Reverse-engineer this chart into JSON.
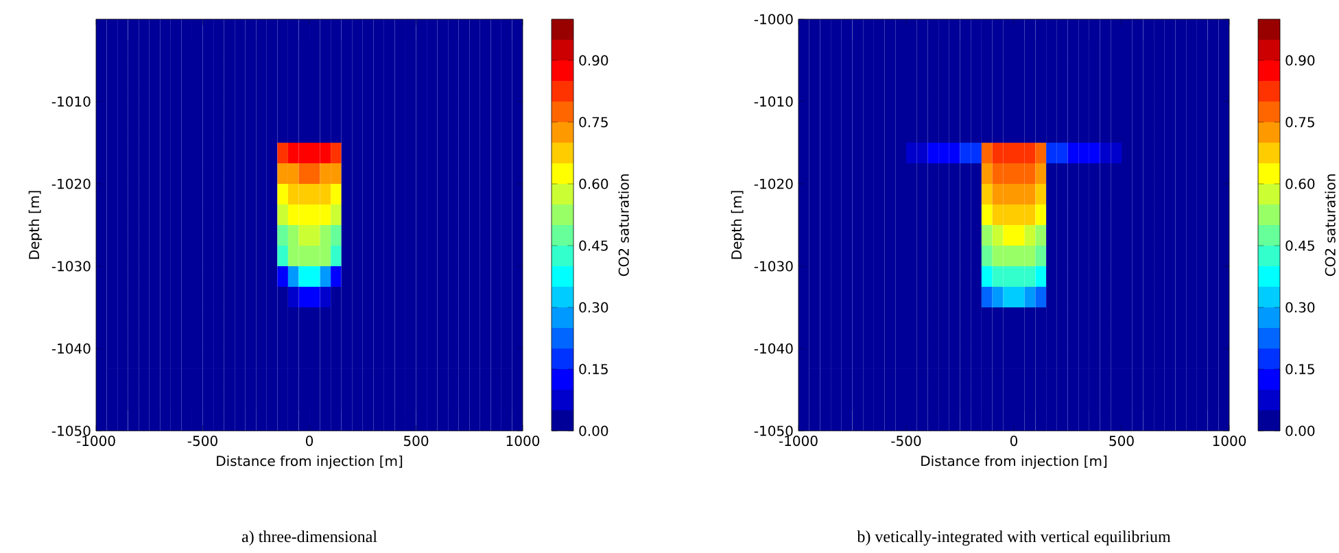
{
  "chart_data": [
    {
      "type": "heatmap",
      "xlabel": "Distance from injection [m]",
      "ylabel": "Depth [m]",
      "clabel": "CO2 saturation",
      "annotations": [
        "a) three-dimensional"
      ],
      "xlim": [
        -1000,
        1000
      ],
      "ylim": [
        -1050,
        -1000
      ],
      "xticks": [
        -1000,
        -500,
        0,
        500,
        1000
      ],
      "yticks": [
        -1050,
        -1040,
        -1030,
        -1020,
        -1010
      ],
      "clim": [
        0,
        1
      ],
      "cticks": [
        {
          "value": 0,
          "label": "0.00"
        },
        {
          "value": 0.15,
          "label": "0.15"
        },
        {
          "value": 0.3,
          "label": "0.30"
        },
        {
          "value": 0.45,
          "label": "0.45"
        },
        {
          "value": 0.6,
          "label": "0.60"
        },
        {
          "value": 0.75,
          "label": "0.75"
        },
        {
          "value": 0.9,
          "label": "0.90"
        }
      ],
      "x": [
        -975,
        -925,
        -875,
        -825,
        -775,
        -725,
        -675,
        -625,
        -575,
        -525,
        -475,
        -425,
        -375,
        -325,
        -275,
        -225,
        -175,
        -125,
        -75,
        -25,
        25,
        75,
        125,
        175,
        225,
        275,
        325,
        375,
        425,
        475,
        525,
        575,
        625,
        675,
        725,
        775,
        825,
        875,
        925,
        975
      ],
      "y": [
        -1001.25,
        -1003.75,
        -1006.25,
        -1008.75,
        -1011.25,
        -1013.75,
        -1016.25,
        -1018.75,
        -1021.25,
        -1023.75,
        -1026.25,
        -1028.75,
        -1031.25,
        -1033.75,
        -1036.25,
        -1038.75,
        -1041.25,
        -1043.75,
        -1046.25,
        -1048.75
      ],
      "cells": [
        [
          0,
          0,
          0,
          0,
          0,
          0,
          0,
          0,
          0,
          0,
          0,
          0,
          0,
          0,
          0,
          0,
          0,
          0,
          0,
          0,
          0,
          0,
          0,
          0,
          0,
          0,
          0,
          0,
          0,
          0,
          0,
          0,
          0,
          0,
          0,
          0,
          0,
          0,
          0,
          0
        ],
        [
          0,
          0,
          0,
          0,
          0,
          0,
          0,
          0,
          0,
          0,
          0,
          0,
          0,
          0,
          0,
          0,
          0,
          0,
          0,
          0,
          0,
          0,
          0,
          0,
          0,
          0,
          0,
          0,
          0,
          0,
          0,
          0,
          0,
          0,
          0,
          0,
          0,
          0,
          0,
          0
        ],
        [
          0,
          0,
          0,
          0,
          0,
          0,
          0,
          0,
          0,
          0,
          0,
          0,
          0,
          0,
          0,
          0,
          0,
          0,
          0,
          0,
          0,
          0,
          0,
          0,
          0,
          0,
          0,
          0,
          0,
          0,
          0,
          0,
          0,
          0,
          0,
          0,
          0,
          0,
          0,
          0
        ],
        [
          0,
          0,
          0,
          0,
          0,
          0,
          0,
          0,
          0,
          0,
          0,
          0,
          0,
          0,
          0,
          0,
          0,
          0,
          0,
          0,
          0,
          0,
          0,
          0,
          0,
          0,
          0,
          0,
          0,
          0,
          0,
          0,
          0,
          0,
          0,
          0,
          0,
          0,
          0,
          0
        ],
        [
          0,
          0,
          0,
          0,
          0,
          0,
          0,
          0,
          0,
          0,
          0,
          0,
          0,
          0,
          0,
          0,
          0,
          0,
          0,
          0,
          0,
          0,
          0,
          0,
          0,
          0,
          0,
          0,
          0,
          0,
          0,
          0,
          0,
          0,
          0,
          0,
          0,
          0,
          0,
          0
        ],
        [
          0,
          0,
          0,
          0,
          0,
          0,
          0,
          0,
          0,
          0,
          0,
          0,
          0,
          0,
          0,
          0,
          0,
          0,
          0,
          0,
          0,
          0,
          0,
          0,
          0,
          0,
          0,
          0,
          0,
          0,
          0,
          0,
          0,
          0,
          0,
          0,
          0,
          0,
          0,
          0
        ],
        [
          0,
          0,
          0,
          0,
          0,
          0,
          0,
          0,
          0,
          0,
          0,
          0,
          0,
          0,
          0,
          0,
          0,
          0.8,
          0.85,
          0.85,
          0.85,
          0.85,
          0.8,
          0,
          0,
          0,
          0,
          0,
          0,
          0,
          0,
          0,
          0,
          0,
          0,
          0,
          0,
          0,
          0,
          0
        ],
        [
          0,
          0,
          0,
          0,
          0,
          0,
          0,
          0,
          0,
          0,
          0,
          0,
          0,
          0,
          0,
          0,
          0,
          0.7,
          0.7,
          0.75,
          0.75,
          0.7,
          0.7,
          0,
          0,
          0,
          0,
          0,
          0,
          0,
          0,
          0,
          0,
          0,
          0,
          0,
          0,
          0,
          0,
          0
        ],
        [
          0,
          0,
          0,
          0,
          0,
          0,
          0,
          0,
          0,
          0,
          0,
          0,
          0,
          0,
          0,
          0,
          0,
          0.6,
          0.65,
          0.65,
          0.65,
          0.65,
          0.6,
          0,
          0,
          0,
          0,
          0,
          0,
          0,
          0,
          0,
          0,
          0,
          0,
          0,
          0,
          0,
          0,
          0
        ],
        [
          0,
          0,
          0,
          0,
          0,
          0,
          0,
          0,
          0,
          0,
          0,
          0,
          0,
          0,
          0,
          0,
          0,
          0.55,
          0.6,
          0.6,
          0.6,
          0.6,
          0.55,
          0,
          0,
          0,
          0,
          0,
          0,
          0,
          0,
          0,
          0,
          0,
          0,
          0,
          0,
          0,
          0,
          0
        ],
        [
          0,
          0,
          0,
          0,
          0,
          0,
          0,
          0,
          0,
          0,
          0,
          0,
          0,
          0,
          0,
          0,
          0,
          0.45,
          0.5,
          0.55,
          0.55,
          0.5,
          0.45,
          0,
          0,
          0,
          0,
          0,
          0,
          0,
          0,
          0,
          0,
          0,
          0,
          0,
          0,
          0,
          0,
          0
        ],
        [
          0,
          0,
          0,
          0,
          0,
          0,
          0,
          0,
          0,
          0,
          0,
          0,
          0,
          0,
          0,
          0,
          0,
          0.4,
          0.5,
          0.5,
          0.5,
          0.5,
          0.4,
          0,
          0,
          0,
          0,
          0,
          0,
          0,
          0,
          0,
          0,
          0,
          0,
          0,
          0,
          0,
          0,
          0
        ],
        [
          0,
          0,
          0,
          0,
          0,
          0,
          0,
          0,
          0,
          0,
          0,
          0,
          0,
          0,
          0,
          0,
          0,
          0.1,
          0.25,
          0.35,
          0.35,
          0.25,
          0.1,
          0,
          0,
          0,
          0,
          0,
          0,
          0,
          0,
          0,
          0,
          0,
          0,
          0,
          0,
          0,
          0,
          0
        ],
        [
          0,
          0,
          0,
          0,
          0,
          0,
          0,
          0,
          0,
          0,
          0,
          0,
          0,
          0,
          0,
          0,
          0,
          0,
          0.05,
          0.1,
          0.1,
          0.05,
          0,
          0,
          0,
          0,
          0,
          0,
          0,
          0,
          0,
          0,
          0,
          0,
          0,
          0,
          0,
          0,
          0,
          0
        ],
        [
          0,
          0,
          0,
          0,
          0,
          0,
          0,
          0,
          0,
          0,
          0,
          0,
          0,
          0,
          0,
          0,
          0,
          0,
          0,
          0,
          0,
          0,
          0,
          0,
          0,
          0,
          0,
          0,
          0,
          0,
          0,
          0,
          0,
          0,
          0,
          0,
          0,
          0,
          0,
          0
        ],
        [
          0,
          0,
          0,
          0,
          0,
          0,
          0,
          0,
          0,
          0,
          0,
          0,
          0,
          0,
          0,
          0,
          0,
          0,
          0,
          0,
          0,
          0,
          0,
          0,
          0,
          0,
          0,
          0,
          0,
          0,
          0,
          0,
          0,
          0,
          0,
          0,
          0,
          0,
          0,
          0
        ],
        [
          0,
          0,
          0,
          0,
          0,
          0,
          0,
          0,
          0,
          0,
          0,
          0,
          0,
          0,
          0,
          0,
          0,
          0,
          0,
          0,
          0,
          0,
          0,
          0,
          0,
          0,
          0,
          0,
          0,
          0,
          0,
          0,
          0,
          0,
          0,
          0,
          0,
          0,
          0,
          0
        ],
        [
          0,
          0,
          0,
          0,
          0,
          0,
          0,
          0,
          0,
          0,
          0,
          0,
          0,
          0,
          0,
          0,
          0,
          0,
          0,
          0,
          0,
          0,
          0,
          0,
          0,
          0,
          0,
          0,
          0,
          0,
          0,
          0,
          0,
          0,
          0,
          0,
          0,
          0,
          0,
          0
        ],
        [
          0,
          0,
          0,
          0,
          0,
          0,
          0,
          0,
          0,
          0,
          0,
          0,
          0,
          0,
          0,
          0,
          0,
          0,
          0,
          0,
          0,
          0,
          0,
          0,
          0,
          0,
          0,
          0,
          0,
          0,
          0,
          0,
          0,
          0,
          0,
          0,
          0,
          0,
          0,
          0
        ],
        [
          0,
          0,
          0,
          0,
          0,
          0,
          0,
          0,
          0,
          0,
          0,
          0,
          0,
          0,
          0,
          0,
          0,
          0,
          0,
          0,
          0,
          0,
          0,
          0,
          0,
          0,
          0,
          0,
          0,
          0,
          0,
          0,
          0,
          0,
          0,
          0,
          0,
          0,
          0,
          0
        ]
      ]
    },
    {
      "type": "heatmap",
      "xlabel": "Distance from injection [m]",
      "ylabel": "Depth [m]",
      "clabel": "CO2 saturation",
      "annotations": [
        "b) vetically-integrated with vertical equilibrium"
      ],
      "xlim": [
        -1000,
        1000
      ],
      "ylim": [
        -1050,
        -1000
      ],
      "xticks": [
        -1000,
        -500,
        0,
        500,
        1000
      ],
      "yticks": [
        -1050,
        -1040,
        -1030,
        -1020,
        -1010,
        -1000
      ],
      "clim": [
        0,
        1
      ],
      "cticks": [
        {
          "value": 0,
          "label": "0.00"
        },
        {
          "value": 0.15,
          "label": "0.15"
        },
        {
          "value": 0.3,
          "label": "0.30"
        },
        {
          "value": 0.45,
          "label": "0.45"
        },
        {
          "value": 0.6,
          "label": "0.60"
        },
        {
          "value": 0.75,
          "label": "0.75"
        },
        {
          "value": 0.9,
          "label": "0.90"
        }
      ],
      "x": [
        -975,
        -925,
        -875,
        -825,
        -775,
        -725,
        -675,
        -625,
        -575,
        -525,
        -475,
        -425,
        -375,
        -325,
        -275,
        -225,
        -175,
        -125,
        -75,
        -25,
        25,
        75,
        125,
        175,
        225,
        275,
        325,
        375,
        425,
        475,
        525,
        575,
        625,
        675,
        725,
        775,
        825,
        875,
        925,
        975
      ],
      "y": [
        -1001.25,
        -1003.75,
        -1006.25,
        -1008.75,
        -1011.25,
        -1013.75,
        -1016.25,
        -1018.75,
        -1021.25,
        -1023.75,
        -1026.25,
        -1028.75,
        -1031.25,
        -1033.75,
        -1036.25,
        -1038.75,
        -1041.25,
        -1043.75,
        -1046.25,
        -1048.75
      ],
      "cells": [
        [
          0,
          0,
          0,
          0,
          0,
          0,
          0,
          0,
          0,
          0,
          0,
          0,
          0,
          0,
          0,
          0,
          0,
          0,
          0,
          0,
          0,
          0,
          0,
          0,
          0,
          0,
          0,
          0,
          0,
          0,
          0,
          0,
          0,
          0,
          0,
          0,
          0,
          0,
          0,
          0
        ],
        [
          0,
          0,
          0,
          0,
          0,
          0,
          0,
          0,
          0,
          0,
          0,
          0,
          0,
          0,
          0,
          0,
          0,
          0,
          0,
          0,
          0,
          0,
          0,
          0,
          0,
          0,
          0,
          0,
          0,
          0,
          0,
          0,
          0,
          0,
          0,
          0,
          0,
          0,
          0,
          0
        ],
        [
          0,
          0,
          0,
          0,
          0,
          0,
          0,
          0,
          0,
          0,
          0,
          0,
          0,
          0,
          0,
          0,
          0,
          0,
          0,
          0,
          0,
          0,
          0,
          0,
          0,
          0,
          0,
          0,
          0,
          0,
          0,
          0,
          0,
          0,
          0,
          0,
          0,
          0,
          0,
          0
        ],
        [
          0,
          0,
          0,
          0,
          0,
          0,
          0,
          0,
          0,
          0,
          0,
          0,
          0,
          0,
          0,
          0,
          0,
          0,
          0,
          0,
          0,
          0,
          0,
          0,
          0,
          0,
          0,
          0,
          0,
          0,
          0,
          0,
          0,
          0,
          0,
          0,
          0,
          0,
          0,
          0
        ],
        [
          0,
          0,
          0,
          0,
          0,
          0,
          0,
          0,
          0,
          0,
          0,
          0,
          0,
          0,
          0,
          0,
          0,
          0,
          0,
          0,
          0,
          0,
          0,
          0,
          0,
          0,
          0,
          0,
          0,
          0,
          0,
          0,
          0,
          0,
          0,
          0,
          0,
          0,
          0,
          0
        ],
        [
          0,
          0,
          0,
          0,
          0,
          0,
          0,
          0,
          0,
          0,
          0,
          0,
          0,
          0,
          0,
          0,
          0,
          0,
          0,
          0,
          0,
          0,
          0,
          0,
          0,
          0,
          0,
          0,
          0,
          0,
          0,
          0,
          0,
          0,
          0,
          0,
          0,
          0,
          0,
          0
        ],
        [
          0,
          0,
          0,
          0,
          0,
          0,
          0,
          0,
          0,
          0,
          0.05,
          0.05,
          0.1,
          0.1,
          0.1,
          0.15,
          0.15,
          0.75,
          0.8,
          0.8,
          0.8,
          0.8,
          0.75,
          0.15,
          0.15,
          0.1,
          0.1,
          0.1,
          0.05,
          0.05,
          0,
          0,
          0,
          0,
          0,
          0,
          0,
          0,
          0,
          0
        ],
        [
          0,
          0,
          0,
          0,
          0,
          0,
          0,
          0,
          0,
          0,
          0,
          0,
          0,
          0,
          0,
          0,
          0,
          0.7,
          0.75,
          0.75,
          0.75,
          0.75,
          0.7,
          0,
          0,
          0,
          0,
          0,
          0,
          0,
          0,
          0,
          0,
          0,
          0,
          0,
          0,
          0,
          0,
          0
        ],
        [
          0,
          0,
          0,
          0,
          0,
          0,
          0,
          0,
          0,
          0,
          0,
          0,
          0,
          0,
          0,
          0,
          0,
          0.65,
          0.7,
          0.7,
          0.7,
          0.7,
          0.65,
          0,
          0,
          0,
          0,
          0,
          0,
          0,
          0,
          0,
          0,
          0,
          0,
          0,
          0,
          0,
          0,
          0
        ],
        [
          0,
          0,
          0,
          0,
          0,
          0,
          0,
          0,
          0,
          0,
          0,
          0,
          0,
          0,
          0,
          0,
          0,
          0.6,
          0.65,
          0.65,
          0.65,
          0.65,
          0.6,
          0,
          0,
          0,
          0,
          0,
          0,
          0,
          0,
          0,
          0,
          0,
          0,
          0,
          0,
          0,
          0,
          0
        ],
        [
          0,
          0,
          0,
          0,
          0,
          0,
          0,
          0,
          0,
          0,
          0,
          0,
          0,
          0,
          0,
          0,
          0,
          0.5,
          0.55,
          0.6,
          0.6,
          0.55,
          0.5,
          0,
          0,
          0,
          0,
          0,
          0,
          0,
          0,
          0,
          0,
          0,
          0,
          0,
          0,
          0,
          0,
          0
        ],
        [
          0,
          0,
          0,
          0,
          0,
          0,
          0,
          0,
          0,
          0,
          0,
          0,
          0,
          0,
          0,
          0,
          0,
          0.45,
          0.5,
          0.5,
          0.5,
          0.5,
          0.45,
          0,
          0,
          0,
          0,
          0,
          0,
          0,
          0,
          0,
          0,
          0,
          0,
          0,
          0,
          0,
          0,
          0
        ],
        [
          0,
          0,
          0,
          0,
          0,
          0,
          0,
          0,
          0,
          0,
          0,
          0,
          0,
          0,
          0,
          0,
          0,
          0.35,
          0.4,
          0.4,
          0.4,
          0.4,
          0.35,
          0,
          0,
          0,
          0,
          0,
          0,
          0,
          0,
          0,
          0,
          0,
          0,
          0,
          0,
          0,
          0,
          0
        ],
        [
          0,
          0,
          0,
          0,
          0,
          0,
          0,
          0,
          0,
          0,
          0,
          0,
          0,
          0,
          0,
          0,
          0,
          0.2,
          0.25,
          0.3,
          0.3,
          0.25,
          0.2,
          0,
          0,
          0,
          0,
          0,
          0,
          0,
          0,
          0,
          0,
          0,
          0,
          0,
          0,
          0,
          0,
          0
        ],
        [
          0,
          0,
          0,
          0,
          0,
          0,
          0,
          0,
          0,
          0,
          0,
          0,
          0,
          0,
          0,
          0,
          0,
          0,
          0,
          0,
          0,
          0,
          0,
          0,
          0,
          0,
          0,
          0,
          0,
          0,
          0,
          0,
          0,
          0,
          0,
          0,
          0,
          0,
          0,
          0
        ],
        [
          0,
          0,
          0,
          0,
          0,
          0,
          0,
          0,
          0,
          0,
          0,
          0,
          0,
          0,
          0,
          0,
          0,
          0,
          0,
          0,
          0,
          0,
          0,
          0,
          0,
          0,
          0,
          0,
          0,
          0,
          0,
          0,
          0,
          0,
          0,
          0,
          0,
          0,
          0,
          0
        ],
        [
          0,
          0,
          0,
          0,
          0,
          0,
          0,
          0,
          0,
          0,
          0,
          0,
          0,
          0,
          0,
          0,
          0,
          0,
          0,
          0,
          0,
          0,
          0,
          0,
          0,
          0,
          0,
          0,
          0,
          0,
          0,
          0,
          0,
          0,
          0,
          0,
          0,
          0,
          0,
          0
        ],
        [
          0,
          0,
          0,
          0,
          0,
          0,
          0,
          0,
          0,
          0,
          0,
          0,
          0,
          0,
          0,
          0,
          0,
          0,
          0,
          0,
          0,
          0,
          0,
          0,
          0,
          0,
          0,
          0,
          0,
          0,
          0,
          0,
          0,
          0,
          0,
          0,
          0,
          0,
          0,
          0
        ],
        [
          0,
          0,
          0,
          0,
          0,
          0,
          0,
          0,
          0,
          0,
          0,
          0,
          0,
          0,
          0,
          0,
          0,
          0,
          0,
          0,
          0,
          0,
          0,
          0,
          0,
          0,
          0,
          0,
          0,
          0,
          0,
          0,
          0,
          0,
          0,
          0,
          0,
          0,
          0,
          0
        ],
        [
          0,
          0,
          0,
          0,
          0,
          0,
          0,
          0,
          0,
          0,
          0,
          0,
          0,
          0,
          0,
          0,
          0,
          0,
          0,
          0,
          0,
          0,
          0,
          0,
          0,
          0,
          0,
          0,
          0,
          0,
          0,
          0,
          0,
          0,
          0,
          0,
          0,
          0,
          0,
          0
        ]
      ]
    }
  ]
}
